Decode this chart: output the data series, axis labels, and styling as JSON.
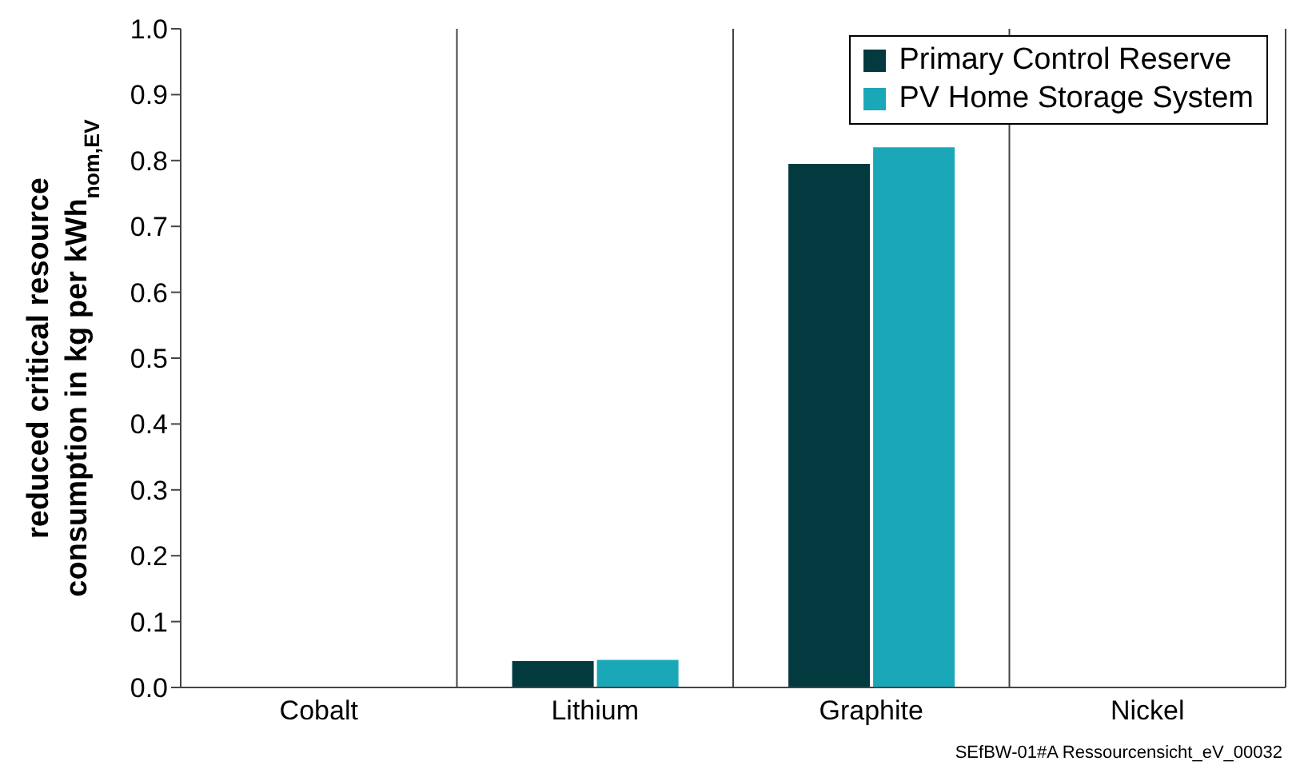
{
  "chart_data": {
    "type": "bar",
    "ylabel": "reduced critical resource consumption in kg per kWh$_{nom,EV}$",
    "categories": [
      "Cobalt",
      "Lithium",
      "Graphite",
      "Nickel"
    ],
    "series": [
      {
        "name": "Primary Control Reserve",
        "color": "#033a40",
        "values": [
          0,
          0.04,
          0.795,
          0
        ]
      },
      {
        "name": "PV Home Storage System",
        "color": "#1aa8b8",
        "values": [
          0,
          0.042,
          0.82,
          0
        ]
      }
    ],
    "ylim": [
      0,
      1
    ],
    "yticks": [
      {
        "value": 0,
        "label": "0.0"
      },
      {
        "value": 0.1,
        "label": "0.1"
      },
      {
        "value": 0.2,
        "label": "0.2"
      },
      {
        "value": 0.3,
        "label": "0.3"
      },
      {
        "value": 0.4,
        "label": "0.4"
      },
      {
        "value": 0.5,
        "label": "0.5"
      },
      {
        "value": 0.6,
        "label": "0.6"
      },
      {
        "value": 0.7,
        "label": "0.7"
      },
      {
        "value": 0.8,
        "label": "0.8"
      },
      {
        "value": 0.9,
        "label": "0.9"
      },
      {
        "value": 1,
        "label": "1.0"
      }
    ],
    "grid": "x",
    "legend": "top right",
    "annotations": [
      "SEfBW-01#A Ressourcensicht_eV_00032"
    ]
  }
}
